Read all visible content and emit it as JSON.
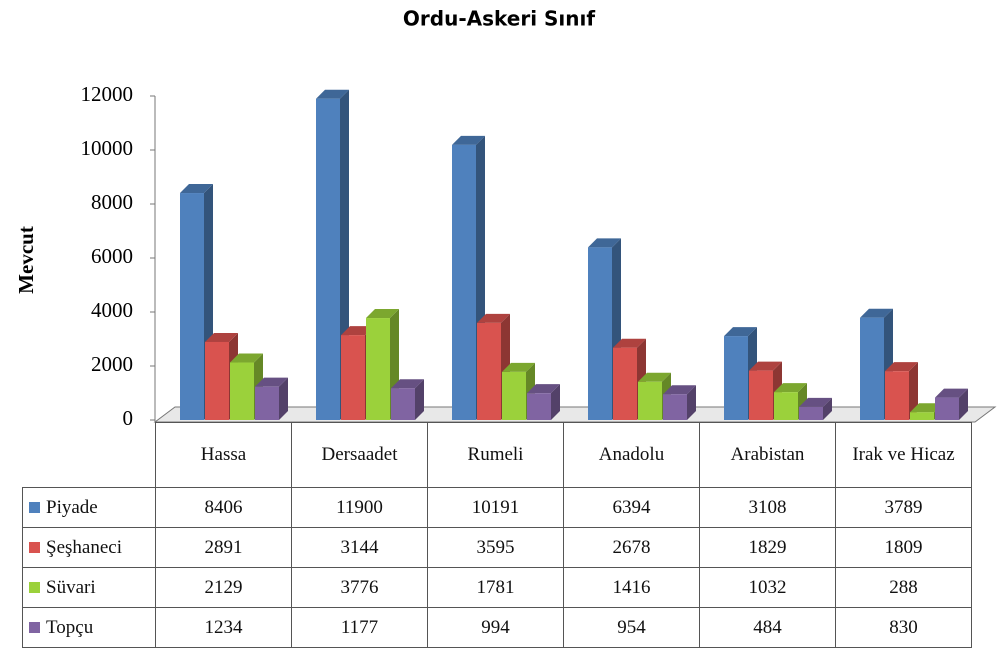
{
  "chart_data": {
    "type": "bar3d",
    "title": "Ordu-Askeri Sınıf",
    "y_label": "Mevcut",
    "categories": [
      "Hassa",
      "Dersaadet",
      "Rumeli",
      "Anadolu",
      "Arabistan",
      "Irak ve Hicaz"
    ],
    "series": [
      {
        "name": "Piyade",
        "color": "#4f81bd",
        "values": [
          8406,
          11900,
          10191,
          6394,
          3108,
          3789
        ]
      },
      {
        "name": "Şeşhaneci",
        "color": "#d9534f",
        "values": [
          2891,
          3144,
          3595,
          2678,
          1829,
          1809
        ]
      },
      {
        "name": "Süvari",
        "color": "#9bd13b",
        "values": [
          2129,
          3776,
          1781,
          1416,
          1032,
          288
        ]
      },
      {
        "name": "Topçu",
        "color": "#8064a2",
        "values": [
          1234,
          1177,
          994,
          954,
          484,
          830
        ]
      }
    ],
    "ylim": [
      0,
      12000
    ],
    "yticks": [
      0,
      2000,
      4000,
      6000,
      8000,
      10000,
      12000
    ],
    "grid": false
  }
}
